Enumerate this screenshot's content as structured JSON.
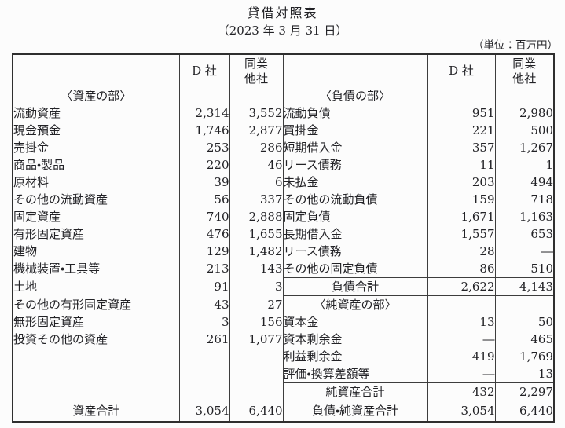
{
  "title": "貸借対照表",
  "subtitle": "（2023 年 3 月 31 日）",
  "unit_label": "（単位：百万円）",
  "table": {
    "col_headers": {
      "company": "D 社",
      "peer_line1": "同業",
      "peer_line2": "他社"
    },
    "left_rows": [
      {
        "label": "〈資産の部〉",
        "type": "section",
        "d": "",
        "peer": ""
      },
      {
        "label": "流動資産",
        "type": "item",
        "indent": 0,
        "d": "2,314",
        "peer": "3,552"
      },
      {
        "label": "現金預金",
        "type": "item",
        "indent": 1,
        "d": "1,746",
        "peer": "2,877"
      },
      {
        "label": "売掛金",
        "type": "item",
        "indent": 1,
        "d": "253",
        "peer": "286"
      },
      {
        "label": "商品・製品",
        "type": "item",
        "indent": 1,
        "d": "220",
        "peer": "46"
      },
      {
        "label": "原材料",
        "type": "item",
        "indent": 1,
        "d": "39",
        "peer": "6"
      },
      {
        "label": "その他の流動資産",
        "type": "item",
        "indent": 1,
        "d": "56",
        "peer": "337"
      },
      {
        "label": "固定資産",
        "type": "item",
        "indent": 0,
        "d": "740",
        "peer": "2,888"
      },
      {
        "label": "有形固定資産",
        "type": "item",
        "indent": 1,
        "d": "476",
        "peer": "1,655"
      },
      {
        "label": "建物",
        "type": "item",
        "indent": 2,
        "d": "129",
        "peer": "1,482"
      },
      {
        "label": "機械装置・工具等",
        "type": "item",
        "indent": 2,
        "d": "213",
        "peer": "143"
      },
      {
        "label": "土地",
        "type": "item",
        "indent": 2,
        "d": "91",
        "peer": "3"
      },
      {
        "label": "その他の有形固定資産",
        "type": "item",
        "indent": 2,
        "d": "43",
        "peer": "27"
      },
      {
        "label": "無形固定資産",
        "type": "item",
        "indent": 1,
        "d": "3",
        "peer": "156"
      },
      {
        "label": "投資その他の資産",
        "type": "item",
        "indent": 1,
        "d": "261",
        "peer": "1,077"
      }
    ],
    "right_rows": [
      {
        "label": "〈負債の部〉",
        "type": "section",
        "d": "",
        "peer": ""
      },
      {
        "label": "流動負債",
        "type": "item",
        "indent": 0,
        "d": "951",
        "peer": "2,980"
      },
      {
        "label": "買掛金",
        "type": "item",
        "indent": 1,
        "d": "221",
        "peer": "500"
      },
      {
        "label": "短期借入金",
        "type": "item",
        "indent": 1,
        "d": "357",
        "peer": "1,267"
      },
      {
        "label": "リース債務",
        "type": "item",
        "indent": 1,
        "d": "11",
        "peer": "1"
      },
      {
        "label": "未払金",
        "type": "item",
        "indent": 1,
        "d": "203",
        "peer": "494"
      },
      {
        "label": "その他の流動負債",
        "type": "item",
        "indent": 1,
        "d": "159",
        "peer": "718"
      },
      {
        "label": "固定負債",
        "type": "item",
        "indent": 0,
        "d": "1,671",
        "peer": "1,163"
      },
      {
        "label": "長期借入金",
        "type": "item",
        "indent": 1,
        "d": "1,557",
        "peer": "653"
      },
      {
        "label": "リース債務",
        "type": "item",
        "indent": 1,
        "d": "28",
        "peer": "―"
      },
      {
        "label": "その他の固定負債",
        "type": "item",
        "indent": 1,
        "d": "86",
        "peer": "510"
      },
      {
        "label": "負債合計",
        "type": "total",
        "d": "2,622",
        "peer": "4,143"
      },
      {
        "label": "〈純資産の部〉",
        "type": "section",
        "d": "",
        "peer": ""
      },
      {
        "label": "資本金",
        "type": "item",
        "indent": 0,
        "d": "13",
        "peer": "50"
      },
      {
        "label": "資本剰余金",
        "type": "item",
        "indent": 0,
        "d": "―",
        "peer": "465"
      },
      {
        "label": "利益剰余金",
        "type": "item",
        "indent": 0,
        "d": "419",
        "peer": "1,769"
      },
      {
        "label": "評価・換算差額等",
        "type": "item",
        "indent": 0,
        "d": "―",
        "peer": "13"
      },
      {
        "label": "純資産合計",
        "type": "total",
        "d": "432",
        "peer": "2,297"
      }
    ],
    "footer": {
      "left_label": "資産合計",
      "left_d": "3,054",
      "left_peer": "6,440",
      "right_label": "負債・純資産合計",
      "right_d": "3,054",
      "right_peer": "6,440"
    }
  }
}
